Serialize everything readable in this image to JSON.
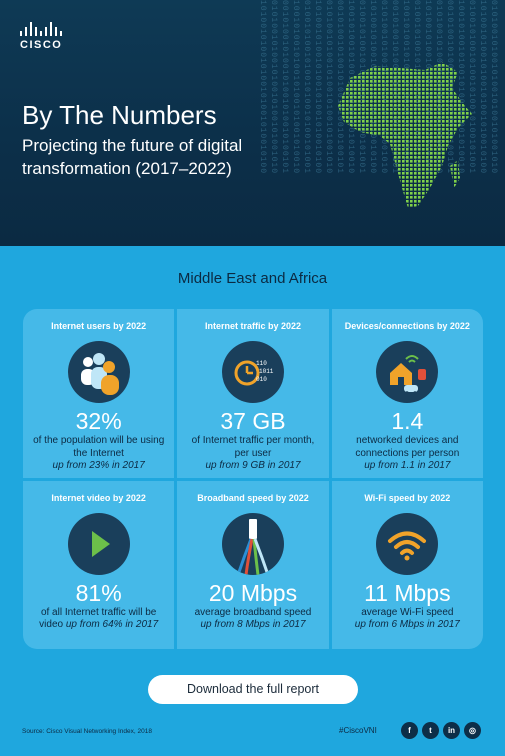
{
  "brand": {
    "name": "CISCO"
  },
  "hero": {
    "title": "By The Numbers",
    "subtitle": "Projecting the future of digital transformation (2017–2022)"
  },
  "region": "Middle East and Africa",
  "stats": [
    {
      "heading": "Internet users by 2022",
      "icon": "people-icon",
      "value": "32%",
      "desc": "of the population will be using the Internet",
      "trend": "up from 23% in 2017"
    },
    {
      "heading": "Internet traffic by 2022",
      "icon": "clock-binary-icon",
      "value": "37 GB",
      "desc": "of Internet traffic per month, per user",
      "trend": "up from 9 GB in 2017"
    },
    {
      "heading": "Devices/connections by 2022",
      "icon": "connected-home-icon",
      "value": "1.4",
      "desc": "networked devices and connections per person",
      "trend": "up from 1.1 in 2017"
    },
    {
      "heading": "Internet video by 2022",
      "icon": "play-icon",
      "value": "81%",
      "desc": "of all Internet traffic will be video",
      "trend": "up from 64% in 2017"
    },
    {
      "heading": "Broadband speed by 2022",
      "icon": "cable-icon",
      "value": "20 Mbps",
      "desc": "average broadband speed",
      "trend": "up from 8 Mbps in 2017"
    },
    {
      "heading": "Wi-Fi speed by 2022",
      "icon": "wifi-icon",
      "value": "11 Mbps",
      "desc": "average Wi-Fi speed",
      "trend": "up from 6 Mbps in 2017"
    }
  ],
  "cta": {
    "label": "Download the full report"
  },
  "footer": {
    "source": "Source: Cisco Visual Networking Index, 2018",
    "hashtag": "#CiscoVNI",
    "social": [
      {
        "name": "facebook-icon",
        "glyph": "f"
      },
      {
        "name": "twitter-icon",
        "glyph": "t"
      },
      {
        "name": "linkedin-icon",
        "glyph": "in"
      },
      {
        "name": "web-icon",
        "glyph": "◎"
      }
    ]
  },
  "colors": {
    "hero_bg": "#0c2f49",
    "page_bg": "#1fa7de",
    "card_bg": "#45b9e8",
    "icon_bg": "#1a3f5b",
    "accent_orange": "#f0a32a",
    "accent_green": "#6cc04a"
  }
}
